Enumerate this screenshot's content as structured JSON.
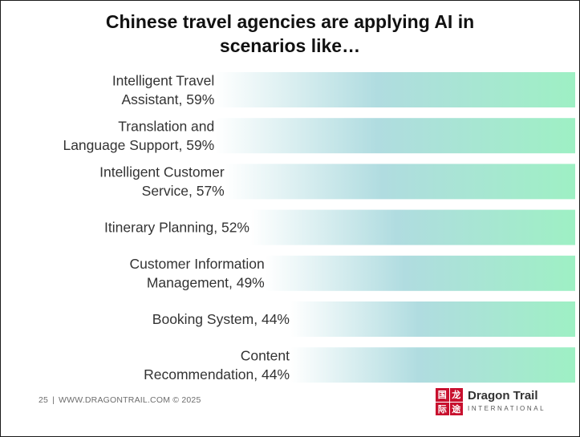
{
  "title": "Chinese travel agencies are applying AI in scenarios like…",
  "title_lines": [
    "Chinese travel agencies are applying AI in",
    "scenarios like…"
  ],
  "chart_data": {
    "type": "bar",
    "orientation": "horizontal",
    "categories": [
      "Intelligent Travel Assistant",
      "Translation and Language Support",
      "Intelligent Customer Service",
      "Itinerary Planning",
      "Customer Information Management",
      "Booking System",
      "Content Recommendation"
    ],
    "values": [
      59,
      59,
      57,
      52,
      49,
      44,
      44
    ],
    "value_unit": "%",
    "bar_labels": [
      [
        "Intelligent Travel",
        "Assistant, 59%"
      ],
      [
        "Translation and",
        "Language Support, 59%"
      ],
      [
        "Intelligent Customer",
        "Service, 57%"
      ],
      [
        "Itinerary Planning, 52%"
      ],
      [
        "Customer Information",
        "Management, 49%"
      ],
      [
        "Booking System, 44%"
      ],
      [
        "Content",
        "Recommendation, 44%"
      ]
    ],
    "bar_fill_gradient": [
      "#ffffff",
      "#b0dce0",
      "#9ef0c4"
    ],
    "xlabel": "",
    "ylabel": "",
    "legend": "none",
    "grid": false
  },
  "footer": {
    "page_number": "25",
    "separator": "|",
    "site": "WWW.DRAGONTRAIL.COM © 2025"
  },
  "logo": {
    "name": "Dragon Trail",
    "sub": "INTERNATIONAL",
    "mark_chars": [
      "国",
      "龙",
      "际",
      "途"
    ],
    "brand_color": "#c8102e"
  }
}
